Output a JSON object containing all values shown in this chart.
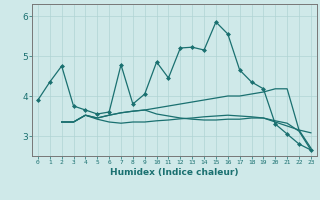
{
  "xlabel": "Humidex (Indice chaleur)",
  "xlim": [
    -0.5,
    23.5
  ],
  "ylim": [
    2.5,
    6.3
  ],
  "yticks": [
    3,
    4,
    5,
    6
  ],
  "xticks": [
    0,
    1,
    2,
    3,
    4,
    5,
    6,
    7,
    8,
    9,
    10,
    11,
    12,
    13,
    14,
    15,
    16,
    17,
    18,
    19,
    20,
    21,
    22,
    23
  ],
  "bg_color": "#cfe9e9",
  "grid_color": "#b0d4d4",
  "line_color": "#1a7070",
  "series1_x": [
    0,
    1,
    2,
    3,
    4,
    5,
    6,
    7,
    8,
    9,
    10,
    11,
    12,
    13,
    14,
    15,
    16,
    17,
    18,
    19,
    20,
    21,
    22,
    23
  ],
  "series1_y": [
    3.9,
    4.35,
    4.75,
    3.75,
    3.65,
    3.55,
    3.6,
    4.78,
    3.8,
    4.05,
    4.85,
    4.45,
    5.2,
    5.22,
    5.15,
    5.85,
    5.55,
    4.65,
    4.35,
    4.18,
    3.3,
    3.05,
    2.8,
    2.65
  ],
  "series2_x": [
    2,
    3,
    4,
    5,
    6,
    7,
    8,
    9,
    10,
    11,
    12,
    13,
    14,
    15,
    16,
    17,
    18,
    19,
    20,
    21,
    22,
    23
  ],
  "series2_y": [
    3.35,
    3.35,
    3.52,
    3.42,
    3.35,
    3.32,
    3.35,
    3.35,
    3.38,
    3.4,
    3.43,
    3.45,
    3.48,
    3.5,
    3.52,
    3.5,
    3.48,
    3.45,
    3.35,
    3.25,
    3.15,
    3.08
  ],
  "series3_x": [
    2,
    3,
    4,
    5,
    6,
    7,
    8,
    9,
    10,
    11,
    12,
    13,
    14,
    15,
    16,
    17,
    18,
    19,
    20,
    21,
    22,
    23
  ],
  "series3_y": [
    3.35,
    3.35,
    3.52,
    3.45,
    3.52,
    3.58,
    3.62,
    3.65,
    3.7,
    3.75,
    3.8,
    3.85,
    3.9,
    3.95,
    4.0,
    4.0,
    4.05,
    4.1,
    4.18,
    4.18,
    3.15,
    2.7
  ],
  "series4_x": [
    2,
    3,
    4,
    5,
    6,
    7,
    8,
    9,
    10,
    11,
    12,
    13,
    14,
    15,
    16,
    17,
    18,
    19,
    20,
    21,
    22,
    23
  ],
  "series4_y": [
    3.35,
    3.35,
    3.52,
    3.45,
    3.52,
    3.58,
    3.62,
    3.65,
    3.55,
    3.5,
    3.45,
    3.42,
    3.4,
    3.4,
    3.42,
    3.42,
    3.45,
    3.45,
    3.38,
    3.32,
    3.12,
    2.65
  ]
}
